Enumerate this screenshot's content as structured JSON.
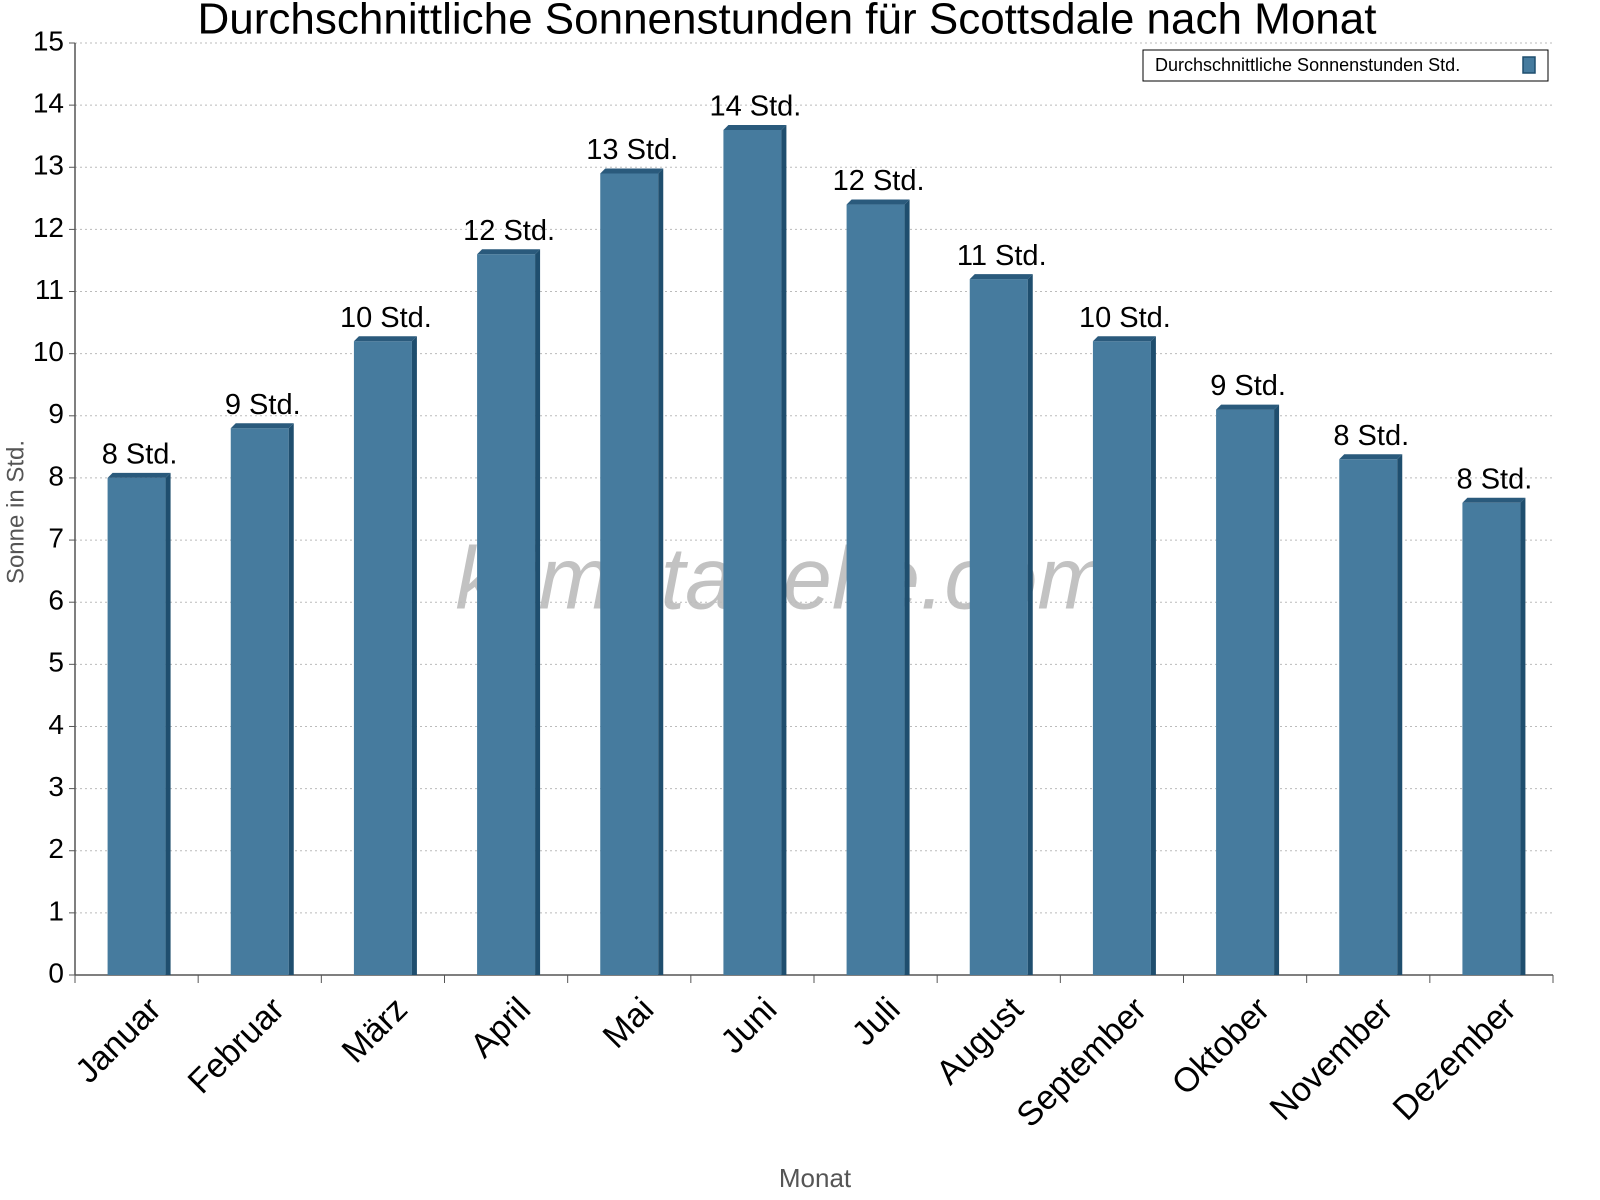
{
  "chart_data": {
    "type": "bar",
    "title": "Durchschnittliche Sonnenstunden für Scottsdale nach Monat",
    "x_label": "Monat",
    "y_label": "Sonne in Std.",
    "watermark": "klimatabelle.com",
    "categories": [
      "Januar",
      "Februar",
      "März",
      "April",
      "Mai",
      "Juni",
      "Juli",
      "August",
      "September",
      "Oktober",
      "November",
      "Dezember"
    ],
    "series": [
      {
        "name": "Durchschnittliche Sonnenstunden Std.",
        "color": "#467b9e",
        "values": [
          8.0,
          8.8,
          10.2,
          11.6,
          12.9,
          13.6,
          12.4,
          11.2,
          10.2,
          9.1,
          8.3,
          7.6
        ],
        "value_labels": [
          "8 Std.",
          "9 Std.",
          "10 Std.",
          "12 Std.",
          "13 Std.",
          "14 Std.",
          "12 Std.",
          "11 Std.",
          "10 Std.",
          "9 Std.",
          "8 Std.",
          "8 Std."
        ]
      }
    ],
    "ylim": [
      0,
      15
    ],
    "yticks": [
      0,
      1,
      2,
      3,
      4,
      5,
      6,
      7,
      8,
      9,
      10,
      11,
      12,
      13,
      14,
      15
    ],
    "grid": true,
    "legend": "top-right"
  }
}
